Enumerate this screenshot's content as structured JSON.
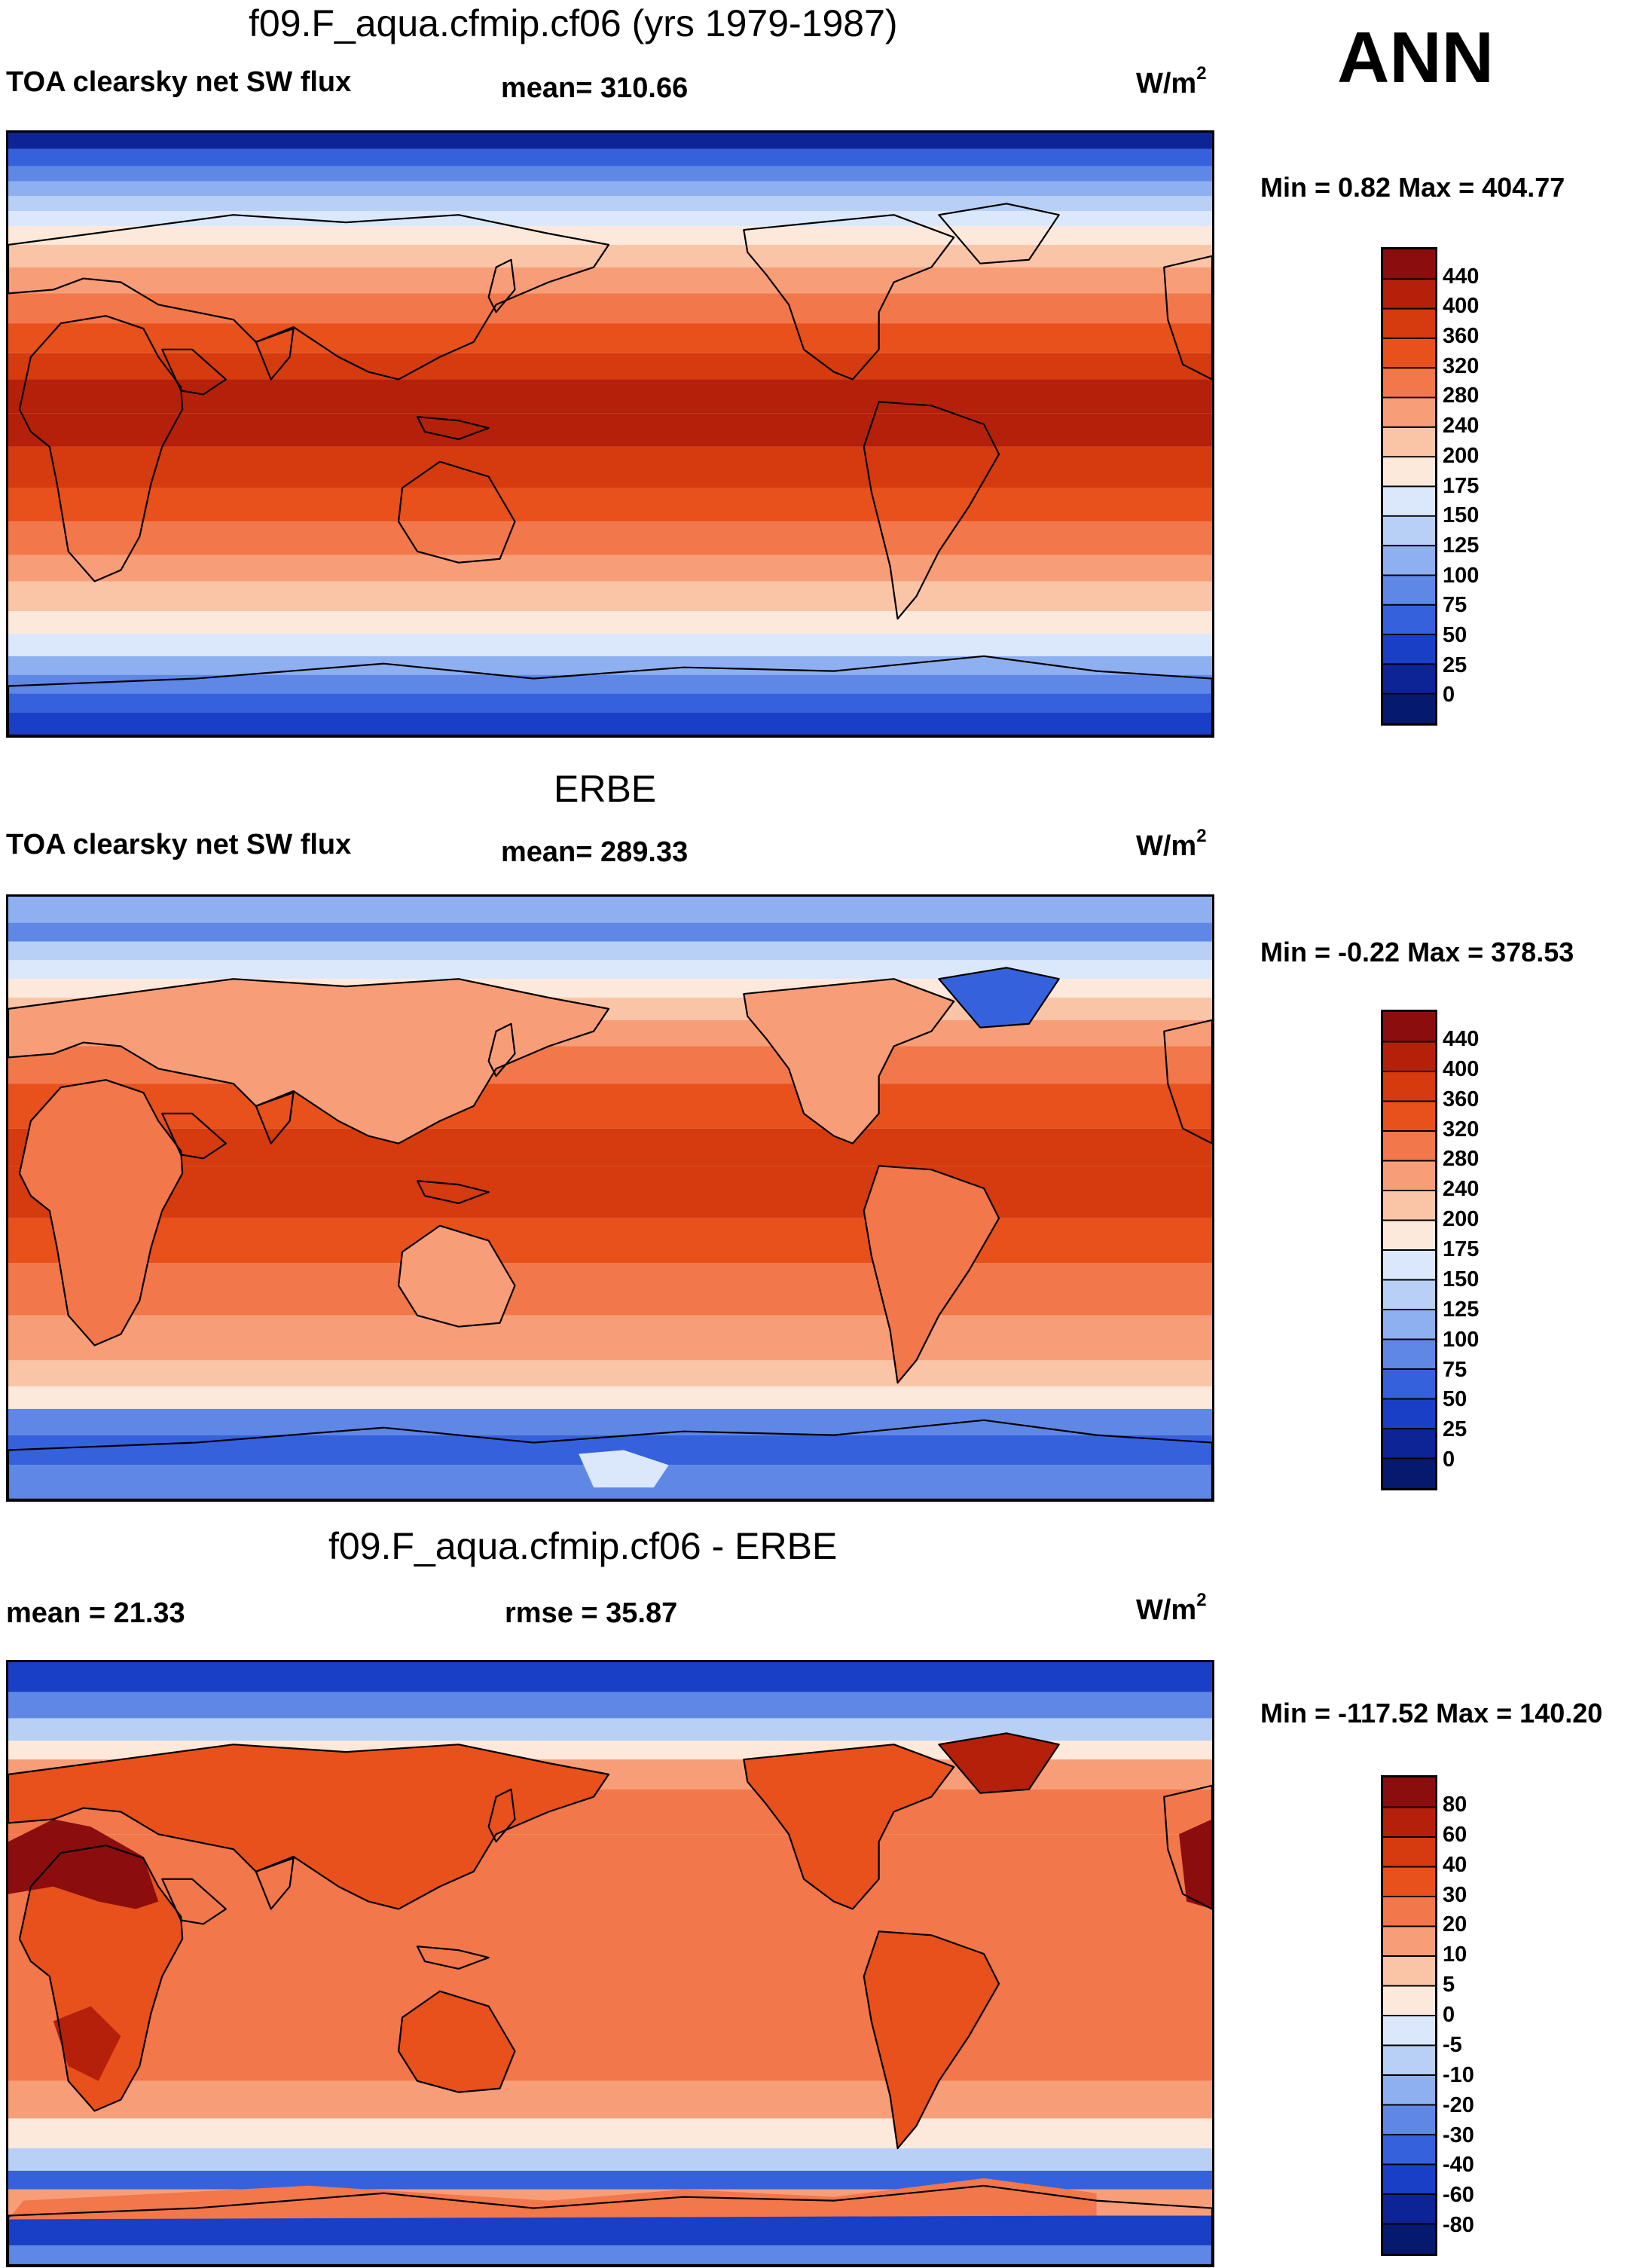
{
  "season": "ANN",
  "panels": [
    {
      "title": "f09.F_aqua.cfmip.cf06 (yrs 1979-1987)",
      "left_label": "TOA clearsky net SW flux",
      "center_label": "mean= 310.66",
      "units_base": "W/m",
      "units_exp": "2",
      "minmax": "Min =   0.82 Max = 404.77",
      "pattern": "model"
    },
    {
      "title": "ERBE",
      "left_label": "TOA clearsky net SW flux",
      "center_label": "mean= 289.33",
      "units_base": "W/m",
      "units_exp": "2",
      "minmax": "Min =  -0.22 Max = 378.53",
      "pattern": "obs"
    },
    {
      "title": "f09.F_aqua.cfmip.cf06 - ERBE",
      "left_label": "mean =  21.33",
      "center_label": "rmse =  35.87",
      "units_base": "W/m",
      "units_exp": "2",
      "minmax": "Min = -117.52 Max = 140.20",
      "pattern": "diff"
    }
  ],
  "colorbars": {
    "absolute": {
      "levels": [
        "440",
        "400",
        "360",
        "320",
        "280",
        "240",
        "200",
        "175",
        "150",
        "125",
        "100",
        "75",
        "50",
        "25",
        "0"
      ],
      "colors": [
        "#8c0d0d",
        "#b5200a",
        "#d63a0f",
        "#e8501c",
        "#f2774a",
        "#f79e78",
        "#fac5a7",
        "#fde9db",
        "#dbe8fb",
        "#b8cff6",
        "#8fb0f0",
        "#5f87e6",
        "#3562dc",
        "#1a3fc7",
        "#0d2496",
        "#051a6e"
      ]
    },
    "difference": {
      "levels": [
        "80",
        "60",
        "40",
        "30",
        "20",
        "10",
        "5",
        "0",
        "-5",
        "-10",
        "-20",
        "-30",
        "-40",
        "-60",
        "-80"
      ],
      "colors": [
        "#8c0d0d",
        "#b5200a",
        "#d63a0f",
        "#e8501c",
        "#f2774a",
        "#f79e78",
        "#fac5a7",
        "#fde9db",
        "#dbe8fb",
        "#b8cff6",
        "#8fb0f0",
        "#5f87e6",
        "#3562dc",
        "#1a3fc7",
        "#0d2496",
        "#051a6e"
      ]
    }
  }
}
